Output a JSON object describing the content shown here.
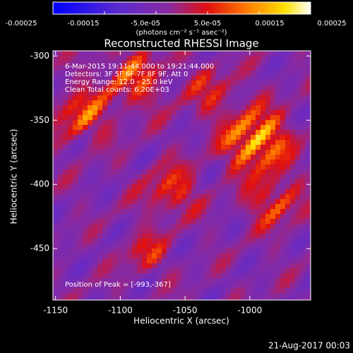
{
  "chart_data": {
    "type": "image",
    "title": "Reconstructed RHESSI Image",
    "x_label": "Heliocentric X (arcsec)",
    "y_label": "Heliocentric Y (arcsec)",
    "xlim": [
      -1152,
      -953
    ],
    "ylim": [
      -490,
      -296
    ],
    "xticks": [
      -1150,
      -1100,
      -1050,
      -1000
    ],
    "yticks": [
      -450,
      -400,
      -350,
      -300
    ],
    "colorbar": {
      "label": "(photons cm⁻² s⁻¹ asec⁻²)",
      "lim": [
        -0.00025,
        0.00025
      ],
      "ticks": [
        {
          "value": -0.00025,
          "label": "-0.00025"
        },
        {
          "value": -0.00015,
          "label": "-0.00015"
        },
        {
          "value": -5e-05,
          "label": "-5.0e-05"
        },
        {
          "value": 5e-05,
          "label": "5.0e-05"
        },
        {
          "value": 0.00015,
          "label": "0.00015"
        },
        {
          "value": 0.00025,
          "label": "0.00025"
        }
      ]
    },
    "annotations": [
      "6-Mar-2015 19:11:44.000 to 19:21:44.000",
      "Detectors: 3F 5F 6F 7F 8F 9F, Att 0",
      "Energy Range: 12.0 - 25.0 keV",
      "Clean      Total counts: 6.20E+03",
      "Position of Peak = [-993,-367]"
    ],
    "footer": "21-Aug-2017 00:03"
  }
}
